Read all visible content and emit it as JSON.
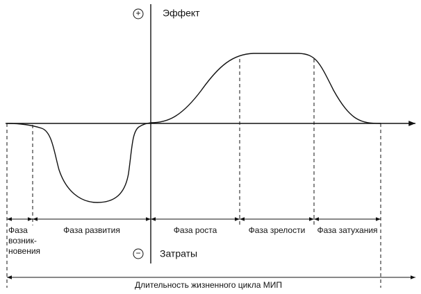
{
  "axis": {
    "positive_sign": "+",
    "positive_label": "Эффект",
    "negative_sign": "−",
    "negative_label": "Затраты"
  },
  "phases": [
    {
      "label_lines": [
        "Фаза",
        "возник-",
        "новения"
      ]
    },
    {
      "label_lines": [
        "Фаза развития"
      ]
    },
    {
      "label_lines": [
        "Фаза роста"
      ]
    },
    {
      "label_lines": [
        "Фаза зрелости"
      ]
    },
    {
      "label_lines": [
        "Фаза затухания"
      ]
    }
  ],
  "duration_label": "Длительность жизненного цикла МИП"
}
